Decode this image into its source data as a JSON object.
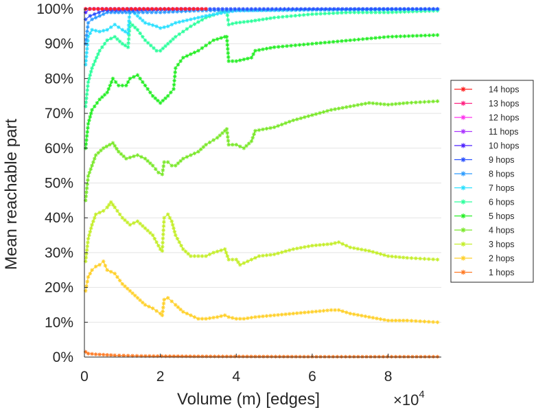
{
  "chart_data": {
    "type": "line",
    "xlabel": "Volume (m) [edges]",
    "ylabel": "Mean reachable part",
    "x_multiplier": "×10",
    "x_multiplier_exponent": "4",
    "xlim": [
      0,
      94000
    ],
    "ylim": [
      0,
      100
    ],
    "xticks": [
      0,
      20000,
      40000,
      60000,
      80000
    ],
    "xtick_labels": [
      "0",
      "2",
      "4",
      "6",
      "8"
    ],
    "yticks": [
      0,
      10,
      20,
      30,
      40,
      50,
      60,
      70,
      80,
      90,
      100
    ],
    "ytick_labels": [
      "0%",
      "10%",
      "20%",
      "30%",
      "40%",
      "50%",
      "60%",
      "70%",
      "80%",
      "90%",
      "100%"
    ],
    "grid": "horizontal",
    "legend_position": "right",
    "series": [
      {
        "name": "14 hops",
        "color": "#ff2020",
        "points": [
          [
            300,
            100
          ],
          [
            32000,
            100
          ]
        ]
      },
      {
        "name": "13 hops",
        "color": "#ff2080",
        "points": [
          [
            300,
            100
          ],
          [
            32000,
            100
          ]
        ]
      },
      {
        "name": "12 hops",
        "color": "#ff33ee",
        "points": [
          [
            300,
            100
          ],
          [
            32000,
            100
          ]
        ]
      },
      {
        "name": "11 hops",
        "color": "#aa33ff",
        "points": [
          [
            300,
            100
          ],
          [
            32000,
            100
          ]
        ]
      },
      {
        "name": "10 hops",
        "color": "#4a1fff",
        "points": [
          [
            300,
            99
          ],
          [
            1500,
            100
          ],
          [
            32000,
            100
          ]
        ]
      },
      {
        "name": "9 hops",
        "color": "#2850ff",
        "points": [
          [
            300,
            97
          ],
          [
            1500,
            98
          ],
          [
            5000,
            99.5
          ],
          [
            15000,
            99.7
          ],
          [
            32000,
            100
          ],
          [
            93000,
            100
          ]
        ]
      },
      {
        "name": "8 hops",
        "color": "#2a9bff",
        "points": [
          [
            300,
            90
          ],
          [
            1000,
            96
          ],
          [
            2000,
            97
          ],
          [
            6000,
            99
          ],
          [
            12000,
            99
          ],
          [
            20000,
            99
          ],
          [
            30000,
            99.5
          ],
          [
            60000,
            99.8
          ],
          [
            93000,
            100
          ]
        ]
      },
      {
        "name": "7 hops",
        "color": "#2ae0ff",
        "points": [
          [
            300,
            84
          ],
          [
            1000,
            92
          ],
          [
            2000,
            94
          ],
          [
            4000,
            93.5
          ],
          [
            6000,
            94
          ],
          [
            8000,
            95.5
          ],
          [
            10000,
            94
          ],
          [
            11500,
            93
          ],
          [
            12000,
            100
          ],
          [
            14000,
            98
          ],
          [
            16000,
            96
          ],
          [
            19000,
            95
          ],
          [
            20000,
            94.5
          ],
          [
            22000,
            95
          ],
          [
            24000,
            96
          ],
          [
            28000,
            97
          ],
          [
            32000,
            98
          ],
          [
            37000,
            99
          ],
          [
            40000,
            99.5
          ],
          [
            60000,
            99.7
          ],
          [
            93000,
            99.8
          ]
        ]
      },
      {
        "name": "6 hops",
        "color": "#2bff9c",
        "points": [
          [
            300,
            72
          ],
          [
            1000,
            79
          ],
          [
            2000,
            83
          ],
          [
            4000,
            88
          ],
          [
            6000,
            91
          ],
          [
            8000,
            92
          ],
          [
            10000,
            90
          ],
          [
            11500,
            89
          ],
          [
            12000,
            96
          ],
          [
            14000,
            94
          ],
          [
            16000,
            91
          ],
          [
            19000,
            88
          ],
          [
            20000,
            88
          ],
          [
            22000,
            90
          ],
          [
            24000,
            92
          ],
          [
            28000,
            95
          ],
          [
            32000,
            97.5
          ],
          [
            36000,
            99
          ],
          [
            37500,
            99.5
          ],
          [
            38000,
            95.5
          ],
          [
            40000,
            96
          ],
          [
            44000,
            96.5
          ],
          [
            50000,
            97.5
          ],
          [
            60000,
            98.5
          ],
          [
            70000,
            99
          ],
          [
            80000,
            99
          ],
          [
            93000,
            99.5
          ]
        ]
      },
      {
        "name": "5 hops",
        "color": "#25ee25",
        "points": [
          [
            300,
            60
          ],
          [
            1000,
            67
          ],
          [
            2000,
            71
          ],
          [
            4000,
            74
          ],
          [
            6000,
            76
          ],
          [
            7500,
            80
          ],
          [
            9000,
            78
          ],
          [
            11000,
            78
          ],
          [
            12000,
            80
          ],
          [
            14000,
            81
          ],
          [
            16000,
            78
          ],
          [
            18000,
            75
          ],
          [
            20000,
            73
          ],
          [
            22000,
            75
          ],
          [
            23500,
            77
          ],
          [
            24000,
            83
          ],
          [
            26000,
            86
          ],
          [
            30000,
            88
          ],
          [
            34000,
            91
          ],
          [
            37000,
            92
          ],
          [
            37500,
            92
          ],
          [
            38000,
            85
          ],
          [
            40000,
            85
          ],
          [
            42000,
            85.5
          ],
          [
            44000,
            86
          ],
          [
            45000,
            88
          ],
          [
            50000,
            89
          ],
          [
            60000,
            90
          ],
          [
            70000,
            91
          ],
          [
            80000,
            92
          ],
          [
            93000,
            92.5
          ]
        ]
      },
      {
        "name": "4 hops",
        "color": "#7ae82a",
        "points": [
          [
            300,
            45
          ],
          [
            1000,
            52
          ],
          [
            2000,
            55
          ],
          [
            3000,
            58
          ],
          [
            5000,
            60
          ],
          [
            7500,
            61.5
          ],
          [
            9000,
            59
          ],
          [
            11000,
            57
          ],
          [
            14000,
            58
          ],
          [
            16000,
            57
          ],
          [
            18000,
            55
          ],
          [
            19500,
            53
          ],
          [
            20500,
            52.5
          ],
          [
            21000,
            56
          ],
          [
            22000,
            56
          ],
          [
            23000,
            55
          ],
          [
            24000,
            55
          ],
          [
            26000,
            57
          ],
          [
            28000,
            58
          ],
          [
            30000,
            59
          ],
          [
            32000,
            61
          ],
          [
            35000,
            63
          ],
          [
            37000,
            65
          ],
          [
            37500,
            65.5
          ],
          [
            38000,
            61
          ],
          [
            40000,
            61
          ],
          [
            42000,
            60
          ],
          [
            44000,
            62
          ],
          [
            45000,
            65
          ],
          [
            50000,
            66
          ],
          [
            55000,
            68
          ],
          [
            60000,
            69.5
          ],
          [
            65000,
            71
          ],
          [
            70000,
            72
          ],
          [
            75000,
            73
          ],
          [
            80000,
            72.5
          ],
          [
            85000,
            73
          ],
          [
            93000,
            73.5
          ]
        ]
      },
      {
        "name": "3 hops",
        "color": "#c4ee2a",
        "points": [
          [
            300,
            27.5
          ],
          [
            1000,
            34
          ],
          [
            2000,
            38
          ],
          [
            3000,
            41
          ],
          [
            5000,
            42
          ],
          [
            6000,
            43
          ],
          [
            7000,
            44.5
          ],
          [
            8000,
            43
          ],
          [
            10000,
            40
          ],
          [
            12000,
            38
          ],
          [
            14000,
            39
          ],
          [
            16000,
            37
          ],
          [
            18000,
            35
          ],
          [
            20000,
            31
          ],
          [
            20500,
            30.5
          ],
          [
            21000,
            40
          ],
          [
            22000,
            41
          ],
          [
            23000,
            39
          ],
          [
            24000,
            35
          ],
          [
            26000,
            31
          ],
          [
            28000,
            29
          ],
          [
            30000,
            29
          ],
          [
            32000,
            29
          ],
          [
            34000,
            30
          ],
          [
            37000,
            31
          ],
          [
            38000,
            28
          ],
          [
            40000,
            28
          ],
          [
            41000,
            26.5
          ],
          [
            42000,
            27
          ],
          [
            44000,
            28
          ],
          [
            46000,
            29
          ],
          [
            50000,
            29.5
          ],
          [
            55000,
            31
          ],
          [
            60000,
            32
          ],
          [
            65000,
            32.5
          ],
          [
            67000,
            33
          ],
          [
            70000,
            31.5
          ],
          [
            75000,
            30.5
          ],
          [
            80000,
            29
          ],
          [
            85000,
            28.5
          ],
          [
            93000,
            28
          ]
        ]
      },
      {
        "name": "2 hops",
        "color": "#ffd02a",
        "points": [
          [
            300,
            19
          ],
          [
            1000,
            23
          ],
          [
            2000,
            25
          ],
          [
            3000,
            26
          ],
          [
            4000,
            26.5
          ],
          [
            5000,
            27.5
          ],
          [
            6000,
            25
          ],
          [
            8000,
            24
          ],
          [
            10000,
            21
          ],
          [
            12000,
            19
          ],
          [
            14000,
            17
          ],
          [
            16000,
            15
          ],
          [
            18000,
            14
          ],
          [
            20000,
            12.5
          ],
          [
            20500,
            12
          ],
          [
            21000,
            16.5
          ],
          [
            22000,
            17
          ],
          [
            23000,
            16
          ],
          [
            24000,
            15
          ],
          [
            26000,
            13
          ],
          [
            28000,
            12
          ],
          [
            30000,
            11
          ],
          [
            32000,
            11
          ],
          [
            35000,
            11.5
          ],
          [
            37000,
            12
          ],
          [
            38000,
            11.5
          ],
          [
            40000,
            11
          ],
          [
            42000,
            11
          ],
          [
            45000,
            11.5
          ],
          [
            50000,
            12
          ],
          [
            55000,
            12.5
          ],
          [
            60000,
            13
          ],
          [
            65000,
            13.5
          ],
          [
            67000,
            13.5
          ],
          [
            70000,
            12.5
          ],
          [
            75000,
            11.5
          ],
          [
            80000,
            10.5
          ],
          [
            85000,
            10.5
          ],
          [
            93000,
            10
          ]
        ]
      },
      {
        "name": "1 hops",
        "color": "#ff7a24",
        "points": [
          [
            300,
            1.5
          ],
          [
            1000,
            1
          ],
          [
            3000,
            0.8
          ],
          [
            8000,
            0.5
          ],
          [
            15000,
            0.3
          ],
          [
            30000,
            0.2
          ],
          [
            60000,
            0.1
          ],
          [
            93000,
            0.1
          ]
        ]
      }
    ]
  }
}
